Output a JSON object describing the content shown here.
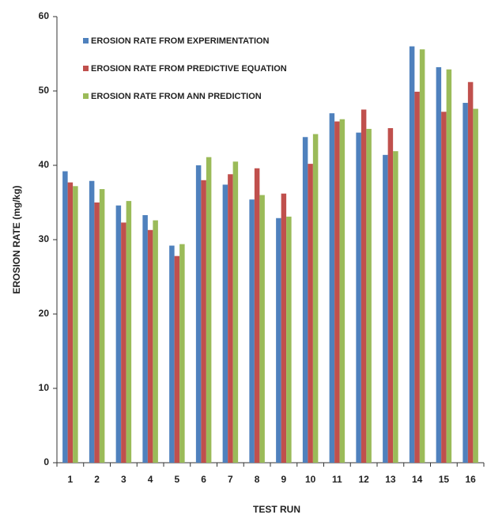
{
  "chart_data": {
    "type": "bar",
    "x_label": "TEST RUN",
    "y_label": "EROSION RATE  (mg/kg)",
    "categories": [
      "1",
      "2",
      "3",
      "4",
      "5",
      "6",
      "7",
      "8",
      "9",
      "10",
      "11",
      "12",
      "13",
      "14",
      "15",
      "16"
    ],
    "series": [
      {
        "name": "EROSION RATE FROM EXPERIMENTATION",
        "color": "#4f81bd",
        "values": [
          39.2,
          37.9,
          34.6,
          33.3,
          29.2,
          40.0,
          37.4,
          35.4,
          32.9,
          43.8,
          47.0,
          44.4,
          41.4,
          56.0,
          53.2,
          48.4
        ]
      },
      {
        "name": "EROSION RATE FROM PREDICTIVE EQUATION",
        "color": "#c0504d",
        "values": [
          37.7,
          35.0,
          32.3,
          31.3,
          27.8,
          38.0,
          38.8,
          39.6,
          36.2,
          40.2,
          45.9,
          47.5,
          45.0,
          49.9,
          47.2,
          51.2
        ]
      },
      {
        "name": "EROSION RATE FROM ANN PREDICTION",
        "color": "#9bbb59",
        "values": [
          37.2,
          36.8,
          35.2,
          32.6,
          29.4,
          41.1,
          40.5,
          36.0,
          33.1,
          44.2,
          46.2,
          44.9,
          41.9,
          55.6,
          52.9,
          47.6
        ]
      }
    ],
    "ylim": [
      0,
      60
    ],
    "yticks": [
      0,
      10,
      20,
      30,
      40,
      50,
      60
    ],
    "grid": false,
    "legend": "upper left"
  }
}
